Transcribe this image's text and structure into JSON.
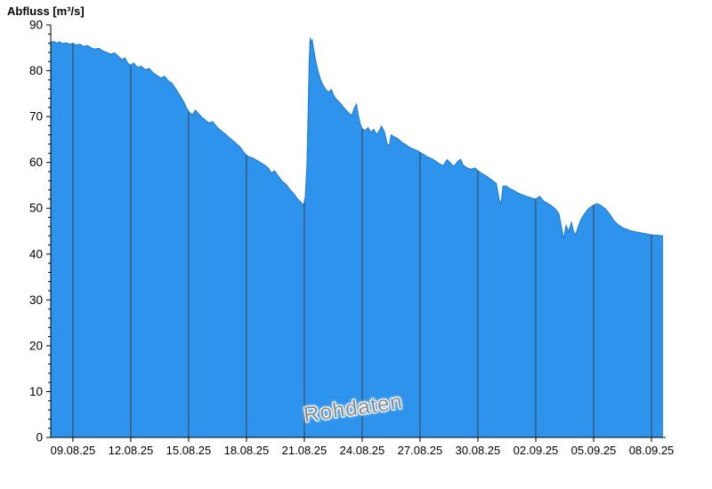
{
  "title": "Abfluss [m³/s]",
  "watermark": "Rohdaten",
  "chart_data": {
    "type": "area",
    "title": "Abfluss [m³/s]",
    "ylabel": "Abfluss [m³/s]",
    "xlabel": "",
    "ylim": [
      0,
      90
    ],
    "y_ticks": [
      0,
      10,
      20,
      30,
      40,
      50,
      60,
      70,
      80,
      90
    ],
    "y_minor_step": 2,
    "x_range_days": [
      0,
      31.75
    ],
    "x_tick_days": [
      1.15,
      4.15,
      7.15,
      10.15,
      13.15,
      16.15,
      19.15,
      22.15,
      25.15,
      28.15,
      31.15
    ],
    "x_tick_labels": [
      "09.08.25",
      "12.08.25",
      "15.08.25",
      "18.08.25",
      "21.08.25",
      "24.08.25",
      "27.08.25",
      "30.08.25",
      "02.09.25",
      "05.09.25",
      "08.09.25"
    ],
    "grid": "vertical-ticks-clipped-to-area",
    "legend": "none",
    "colors": {
      "fill": "#2E93EC",
      "edge": "#1E78C8",
      "grid": "#404040",
      "axis": "#000000",
      "text": "#000000",
      "watermark": "#8A8A8A",
      "background": "#FFFFFF"
    },
    "series": [
      {
        "name": "Rohdaten",
        "points": [
          [
            0.0,
            86.2
          ],
          [
            0.15,
            86.4
          ],
          [
            0.3,
            86.0
          ],
          [
            0.45,
            86.3
          ],
          [
            0.6,
            85.9
          ],
          [
            0.8,
            86.1
          ],
          [
            1.0,
            85.8
          ],
          [
            1.15,
            86.0
          ],
          [
            1.3,
            85.6
          ],
          [
            1.5,
            85.8
          ],
          [
            1.7,
            85.3
          ],
          [
            1.9,
            85.5
          ],
          [
            2.1,
            85.0
          ],
          [
            2.3,
            84.7
          ],
          [
            2.5,
            84.9
          ],
          [
            2.7,
            84.3
          ],
          [
            2.9,
            84.0
          ],
          [
            3.1,
            83.6
          ],
          [
            3.3,
            83.9
          ],
          [
            3.5,
            83.2
          ],
          [
            3.7,
            82.4
          ],
          [
            3.85,
            82.8
          ],
          [
            4.0,
            81.6
          ],
          [
            4.15,
            81.2
          ],
          [
            4.3,
            81.7
          ],
          [
            4.5,
            80.7
          ],
          [
            4.7,
            81.0
          ],
          [
            4.9,
            80.2
          ],
          [
            5.1,
            80.5
          ],
          [
            5.3,
            79.6
          ],
          [
            5.5,
            79.0
          ],
          [
            5.7,
            78.4
          ],
          [
            5.9,
            78.8
          ],
          [
            6.1,
            77.8
          ],
          [
            6.3,
            77.2
          ],
          [
            6.5,
            75.9
          ],
          [
            6.7,
            74.6
          ],
          [
            6.9,
            73.2
          ],
          [
            7.05,
            71.8
          ],
          [
            7.2,
            70.9
          ],
          [
            7.35,
            70.4
          ],
          [
            7.5,
            71.4
          ],
          [
            7.65,
            70.7
          ],
          [
            7.8,
            70.0
          ],
          [
            8.0,
            69.3
          ],
          [
            8.2,
            68.6
          ],
          [
            8.4,
            68.9
          ],
          [
            8.6,
            67.8
          ],
          [
            8.8,
            67.0
          ],
          [
            9.0,
            66.4
          ],
          [
            9.2,
            65.6
          ],
          [
            9.4,
            64.9
          ],
          [
            9.6,
            64.2
          ],
          [
            9.8,
            63.4
          ],
          [
            10.0,
            62.3
          ],
          [
            10.15,
            61.6
          ],
          [
            10.3,
            61.2
          ],
          [
            10.5,
            60.9
          ],
          [
            10.7,
            60.4
          ],
          [
            10.9,
            59.9
          ],
          [
            11.1,
            59.4
          ],
          [
            11.3,
            58.7
          ],
          [
            11.45,
            57.6
          ],
          [
            11.6,
            58.2
          ],
          [
            11.8,
            57.0
          ],
          [
            12.0,
            55.9
          ],
          [
            12.2,
            55.2
          ],
          [
            12.4,
            54.1
          ],
          [
            12.6,
            53.2
          ],
          [
            12.75,
            52.3
          ],
          [
            12.9,
            51.6
          ],
          [
            13.0,
            51.2
          ],
          [
            13.1,
            50.6
          ],
          [
            13.2,
            52.5
          ],
          [
            13.28,
            59.0
          ],
          [
            13.34,
            70.0
          ],
          [
            13.4,
            82.0
          ],
          [
            13.45,
            87.2
          ],
          [
            13.5,
            85.8
          ],
          [
            13.55,
            86.9
          ],
          [
            13.62,
            85.0
          ],
          [
            13.7,
            83.0
          ],
          [
            13.8,
            81.0
          ],
          [
            13.9,
            79.3
          ],
          [
            14.0,
            78.0
          ],
          [
            14.1,
            77.0
          ],
          [
            14.25,
            76.0
          ],
          [
            14.4,
            75.3
          ],
          [
            14.55,
            75.9
          ],
          [
            14.7,
            74.4
          ],
          [
            14.85,
            73.6
          ],
          [
            15.0,
            73.0
          ],
          [
            15.15,
            72.2
          ],
          [
            15.3,
            71.5
          ],
          [
            15.45,
            70.8
          ],
          [
            15.6,
            70.2
          ],
          [
            15.75,
            71.9
          ],
          [
            15.85,
            72.7
          ],
          [
            15.95,
            70.3
          ],
          [
            16.05,
            68.4
          ],
          [
            16.15,
            67.4
          ],
          [
            16.3,
            66.9
          ],
          [
            16.45,
            67.6
          ],
          [
            16.6,
            66.6
          ],
          [
            16.75,
            67.2
          ],
          [
            16.9,
            66.1
          ],
          [
            17.05,
            67.0
          ],
          [
            17.15,
            67.9
          ],
          [
            17.3,
            66.7
          ],
          [
            17.45,
            64.0
          ],
          [
            17.55,
            63.6
          ],
          [
            17.65,
            66.0
          ],
          [
            17.8,
            65.6
          ],
          [
            18.0,
            65.2
          ],
          [
            18.2,
            64.4
          ],
          [
            18.4,
            63.9
          ],
          [
            18.6,
            63.3
          ],
          [
            18.8,
            62.9
          ],
          [
            19.0,
            62.6
          ],
          [
            19.15,
            62.2
          ],
          [
            19.35,
            61.7
          ],
          [
            19.55,
            61.2
          ],
          [
            19.75,
            60.8
          ],
          [
            19.95,
            60.3
          ],
          [
            20.15,
            59.7
          ],
          [
            20.35,
            59.3
          ],
          [
            20.55,
            60.6
          ],
          [
            20.7,
            60.0
          ],
          [
            20.9,
            59.1
          ],
          [
            21.1,
            60.2
          ],
          [
            21.25,
            60.7
          ],
          [
            21.4,
            59.3
          ],
          [
            21.6,
            58.8
          ],
          [
            21.8,
            58.5
          ],
          [
            22.0,
            58.8
          ],
          [
            22.15,
            58.2
          ],
          [
            22.35,
            57.6
          ],
          [
            22.55,
            57.1
          ],
          [
            22.75,
            56.5
          ],
          [
            22.95,
            55.9
          ],
          [
            23.1,
            55.4
          ],
          [
            23.25,
            52.0
          ],
          [
            23.35,
            50.9
          ],
          [
            23.45,
            54.8
          ],
          [
            23.6,
            54.9
          ],
          [
            23.8,
            54.3
          ],
          [
            24.0,
            53.9
          ],
          [
            24.15,
            53.5
          ],
          [
            24.35,
            53.1
          ],
          [
            24.55,
            52.8
          ],
          [
            24.75,
            52.5
          ],
          [
            24.95,
            52.2
          ],
          [
            25.15,
            52.0
          ],
          [
            25.35,
            52.6
          ],
          [
            25.55,
            51.6
          ],
          [
            25.75,
            51.1
          ],
          [
            25.95,
            50.6
          ],
          [
            26.15,
            49.9
          ],
          [
            26.35,
            48.8
          ],
          [
            26.5,
            45.5
          ],
          [
            26.6,
            43.3
          ],
          [
            26.72,
            46.3
          ],
          [
            26.85,
            44.9
          ],
          [
            27.0,
            46.9
          ],
          [
            27.1,
            45.2
          ],
          [
            27.2,
            44.1
          ],
          [
            27.35,
            46.0
          ],
          [
            27.5,
            47.6
          ],
          [
            27.7,
            48.9
          ],
          [
            27.9,
            50.0
          ],
          [
            28.05,
            50.4
          ],
          [
            28.15,
            50.7
          ],
          [
            28.3,
            51.0
          ],
          [
            28.45,
            50.8
          ],
          [
            28.6,
            50.4
          ],
          [
            28.75,
            49.9
          ],
          [
            28.9,
            49.2
          ],
          [
            29.05,
            48.3
          ],
          [
            29.2,
            47.3
          ],
          [
            29.4,
            46.5
          ],
          [
            29.6,
            45.9
          ],
          [
            29.8,
            45.5
          ],
          [
            30.0,
            45.2
          ],
          [
            30.15,
            45.0
          ],
          [
            30.4,
            44.8
          ],
          [
            30.65,
            44.6
          ],
          [
            30.9,
            44.4
          ],
          [
            31.15,
            44.2
          ],
          [
            31.45,
            44.1
          ],
          [
            31.75,
            44.0
          ]
        ]
      }
    ]
  }
}
